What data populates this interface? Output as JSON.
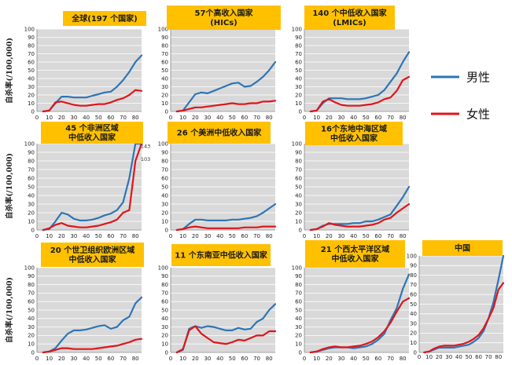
{
  "y_axis_label": "自杀率(/100,000)",
  "legend": [
    {
      "name": "男性",
      "color": "#2e75b6"
    },
    {
      "name": "女性",
      "color": "#e0151b"
    }
  ],
  "colors": {
    "title_box": "#ffc000",
    "plot_bg": "#d9d9d9",
    "grid": "#ffffff"
  },
  "chart_data": [
    {
      "type": "line",
      "title": [
        "全球(197 个国家)"
      ],
      "x": [
        5,
        10,
        15,
        20,
        25,
        30,
        35,
        40,
        45,
        50,
        55,
        60,
        65,
        70,
        75,
        80,
        85
      ],
      "series": [
        {
          "name": "男性",
          "values": [
            0,
            1,
            10,
            18,
            18,
            17,
            17,
            17,
            19,
            21,
            23,
            24,
            30,
            38,
            48,
            60,
            68
          ]
        },
        {
          "name": "女性",
          "values": [
            0,
            1,
            11,
            12,
            10,
            8,
            7,
            7,
            8,
            9,
            9,
            11,
            14,
            16,
            20,
            26,
            25
          ]
        }
      ],
      "ylim": [
        0,
        100
      ],
      "yticks": [
        0,
        10,
        20,
        30,
        40,
        50,
        60,
        70,
        80,
        90,
        100
      ],
      "xlim": [
        0,
        85
      ],
      "xticks": [
        0,
        10,
        20,
        30,
        40,
        50,
        60,
        70,
        80
      ]
    },
    {
      "type": "line",
      "title": [
        "57个高收入国家",
        "(HICs)"
      ],
      "x": [
        5,
        10,
        15,
        20,
        25,
        30,
        35,
        40,
        45,
        50,
        55,
        60,
        65,
        70,
        75,
        80,
        85
      ],
      "series": [
        {
          "name": "男性",
          "values": [
            0,
            1,
            11,
            21,
            23,
            22,
            25,
            28,
            31,
            34,
            35,
            30,
            31,
            36,
            42,
            50,
            60
          ]
        },
        {
          "name": "女性",
          "values": [
            0,
            1,
            3,
            5,
            5,
            6,
            7,
            8,
            9,
            10,
            9,
            9,
            10,
            10,
            12,
            12,
            13
          ]
        }
      ],
      "ylim": [
        0,
        100
      ],
      "yticks": [
        0,
        10,
        20,
        30,
        40,
        50,
        60,
        70,
        80,
        90,
        100
      ],
      "xlim": [
        0,
        85
      ],
      "xticks": [
        0,
        10,
        20,
        30,
        40,
        50,
        60,
        70,
        80
      ]
    },
    {
      "type": "line",
      "title": [
        "140 个中低收入国家",
        "(LMICs)"
      ],
      "x": [
        5,
        10,
        15,
        20,
        25,
        30,
        35,
        40,
        45,
        50,
        55,
        60,
        65,
        70,
        75,
        80,
        85
      ],
      "series": [
        {
          "name": "男性",
          "values": [
            0,
            1,
            10,
            16,
            16,
            16,
            15,
            15,
            15,
            16,
            18,
            20,
            26,
            36,
            46,
            60,
            72
          ]
        },
        {
          "name": "女性",
          "values": [
            0,
            1,
            12,
            15,
            11,
            8,
            7,
            7,
            7,
            8,
            9,
            11,
            15,
            17,
            25,
            38,
            42
          ]
        }
      ],
      "ylim": [
        0,
        100
      ],
      "yticks": [
        0,
        10,
        20,
        30,
        40,
        50,
        60,
        70,
        80,
        90,
        100
      ],
      "xlim": [
        0,
        85
      ],
      "xticks": [
        0,
        10,
        20,
        30,
        40,
        50,
        60,
        70,
        80
      ]
    },
    {
      "type": "line",
      "title": [
        "45 个非洲区域",
        "中低收入国家"
      ],
      "x": [
        5,
        10,
        15,
        20,
        25,
        30,
        35,
        40,
        45,
        50,
        55,
        60,
        65,
        70,
        75,
        80,
        85
      ],
      "series": [
        {
          "name": "男性",
          "values": [
            0,
            1,
            10,
            20,
            18,
            13,
            11,
            11,
            12,
            14,
            17,
            19,
            23,
            32,
            60,
            100,
            100
          ]
        },
        {
          "name": "女性",
          "values": [
            0,
            2,
            6,
            8,
            5,
            4,
            3,
            3,
            4,
            5,
            7,
            9,
            12,
            20,
            23,
            80,
            100
          ]
        }
      ],
      "data_labels": [
        {
          "series": "男性",
          "x": 83,
          "y": 95,
          "text": "143"
        },
        {
          "series": "女性",
          "x": 83,
          "y": 80,
          "text": "103"
        }
      ],
      "ylim": [
        0,
        100
      ],
      "yticks": [
        0,
        10,
        20,
        30,
        40,
        50,
        60,
        70,
        80,
        90,
        100
      ],
      "xlim": [
        0,
        85
      ],
      "xticks": [
        0,
        10,
        20,
        30,
        40,
        50,
        60,
        70,
        80
      ]
    },
    {
      "type": "line",
      "title": [
        "26 个美洲中低收入国家"
      ],
      "x": [
        5,
        10,
        15,
        20,
        25,
        30,
        35,
        40,
        45,
        50,
        55,
        60,
        65,
        70,
        75,
        80,
        85
      ],
      "series": [
        {
          "name": "男性",
          "values": [
            0,
            1,
            7,
            12,
            12,
            11,
            11,
            11,
            11,
            12,
            12,
            13,
            14,
            16,
            20,
            25,
            30
          ]
        },
        {
          "name": "女性",
          "values": [
            0,
            1,
            3,
            4,
            3,
            2,
            2,
            2,
            2,
            2,
            2,
            3,
            3,
            3,
            4,
            4,
            4
          ]
        }
      ],
      "ylim": [
        0,
        100
      ],
      "yticks": [
        0,
        10,
        20,
        30,
        40,
        50,
        60,
        70,
        80,
        90,
        100
      ],
      "xlim": [
        0,
        85
      ],
      "xticks": [
        0,
        10,
        20,
        30,
        40,
        50,
        60,
        70,
        80
      ]
    },
    {
      "type": "line",
      "title": [
        "16个东地中海区域",
        "中低收入国家"
      ],
      "x": [
        5,
        10,
        15,
        20,
        25,
        30,
        35,
        40,
        45,
        50,
        55,
        60,
        65,
        70,
        75,
        80,
        85
      ],
      "series": [
        {
          "name": "男性",
          "values": [
            0,
            1,
            5,
            7,
            7,
            7,
            7,
            8,
            8,
            10,
            10,
            12,
            15,
            18,
            28,
            38,
            50
          ]
        },
        {
          "name": "女性",
          "values": [
            0,
            1,
            4,
            8,
            6,
            5,
            4,
            4,
            4,
            5,
            6,
            8,
            12,
            14,
            20,
            25,
            30
          ]
        }
      ],
      "ylim": [
        0,
        100
      ],
      "yticks": [
        0,
        10,
        20,
        30,
        40,
        50,
        60,
        70,
        80,
        90,
        100
      ],
      "xlim": [
        0,
        85
      ],
      "xticks": [
        0,
        10,
        20,
        30,
        40,
        50,
        60,
        70,
        80
      ]
    },
    {
      "type": "line",
      "title": [
        "20 个世卫组织欧洲区域",
        "中低收入国家"
      ],
      "x": [
        5,
        10,
        15,
        20,
        25,
        30,
        35,
        40,
        45,
        50,
        55,
        60,
        65,
        70,
        75,
        80,
        85
      ],
      "series": [
        {
          "name": "男性",
          "values": [
            0,
            1,
            5,
            14,
            22,
            26,
            26,
            27,
            29,
            31,
            32,
            28,
            30,
            38,
            42,
            58,
            65
          ]
        },
        {
          "name": "女性",
          "values": [
            0,
            1,
            3,
            5,
            5,
            4,
            4,
            4,
            4,
            5,
            6,
            7,
            8,
            10,
            12,
            15,
            16
          ]
        }
      ],
      "ylim": [
        0,
        100
      ],
      "yticks": [
        0,
        10,
        20,
        30,
        40,
        50,
        60,
        70,
        80,
        90,
        100
      ],
      "xlim": [
        0,
        85
      ],
      "xticks": [
        0,
        10,
        20,
        30,
        40,
        50,
        60,
        70,
        80
      ]
    },
    {
      "type": "line",
      "title": [
        "11 个东南亚中低收入国家"
      ],
      "x": [
        5,
        10,
        15,
        20,
        25,
        30,
        35,
        40,
        45,
        50,
        55,
        60,
        65,
        70,
        75,
        80,
        85
      ],
      "series": [
        {
          "name": "男性",
          "values": [
            0,
            3,
            28,
            31,
            29,
            31,
            30,
            28,
            26,
            26,
            29,
            27,
            28,
            36,
            40,
            50,
            57
          ]
        },
        {
          "name": "女性",
          "values": [
            0,
            4,
            26,
            31,
            22,
            17,
            12,
            11,
            10,
            12,
            15,
            14,
            17,
            20,
            20,
            25,
            25
          ]
        }
      ],
      "ylim": [
        0,
        100
      ],
      "yticks": [
        0,
        10,
        20,
        30,
        40,
        50,
        60,
        70,
        80,
        90,
        100
      ],
      "xlim": [
        0,
        85
      ],
      "xticks": [
        0,
        10,
        20,
        30,
        40,
        50,
        60,
        70,
        80
      ]
    },
    {
      "type": "line",
      "title": [
        "21 个西太平洋区域",
        "中低收入国家"
      ],
      "x": [
        5,
        10,
        15,
        20,
        25,
        30,
        35,
        40,
        45,
        50,
        55,
        60,
        65,
        70,
        75,
        80,
        85
      ],
      "series": [
        {
          "name": "男性",
          "values": [
            0,
            1,
            3,
            5,
            6,
            6,
            6,
            5,
            6,
            7,
            10,
            15,
            22,
            38,
            52,
            75,
            92
          ]
        },
        {
          "name": "女性",
          "values": [
            0,
            1,
            4,
            6,
            7,
            6,
            6,
            7,
            8,
            10,
            13,
            18,
            25,
            35,
            48,
            60,
            64
          ]
        }
      ],
      "ylim": [
        0,
        100
      ],
      "yticks": [
        0,
        10,
        20,
        30,
        40,
        50,
        60,
        70,
        80,
        90,
        100
      ],
      "xlim": [
        0,
        85
      ],
      "xticks": [
        0,
        10,
        20,
        30,
        40,
        50,
        60,
        70,
        80
      ]
    },
    {
      "type": "line",
      "title": [
        "中国"
      ],
      "x": [
        5,
        10,
        15,
        20,
        25,
        30,
        35,
        40,
        45,
        50,
        55,
        60,
        65,
        70,
        75,
        80,
        85
      ],
      "series": [
        {
          "name": "男性",
          "values": [
            0,
            1,
            3,
            5,
            5,
            5,
            5,
            6,
            7,
            8,
            11,
            15,
            22,
            35,
            52,
            75,
            100
          ]
        },
        {
          "name": "女性",
          "values": [
            0,
            1,
            4,
            6,
            7,
            7,
            7,
            8,
            9,
            11,
            14,
            18,
            25,
            35,
            46,
            65,
            72
          ]
        }
      ],
      "ylim": [
        0,
        100
      ],
      "yticks": [
        0,
        10,
        20,
        30,
        40,
        50,
        60,
        70,
        80,
        90,
        100
      ],
      "xlim": [
        0,
        85
      ],
      "xticks": [
        0,
        10,
        20,
        30,
        40,
        50,
        60,
        70,
        80
      ]
    }
  ]
}
